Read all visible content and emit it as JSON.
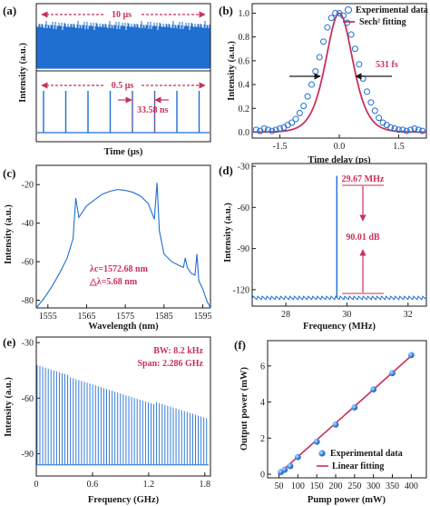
{
  "colors": {
    "blue": "#1f6fd1",
    "red": "#c8325a",
    "ink": "#1a1a1a"
  },
  "chart_data": [
    {
      "panel": "(a)",
      "type": "line",
      "ylabel": "Intensity (a.u.)",
      "xlabel": "Time (μs)",
      "top": {
        "annotation": "10 μs"
      },
      "bottom": {
        "annotation_span": "0.5 μs",
        "annotation_interval": "33.58 ns",
        "pulse_count": 8
      }
    },
    {
      "panel": "(b)",
      "type": "scatter",
      "xlabel": "Time delay (ps)",
      "ylabel": "Intensity (a.u.)",
      "xlim": [
        -2.2,
        2.2
      ],
      "ylim": [
        -0.05,
        1.08
      ],
      "xticks": [
        "-1.5",
        "0.0",
        "1.5"
      ],
      "yticks": [
        "0.0",
        "0.2",
        "0.4",
        "0.6",
        "0.8",
        "1.0"
      ],
      "fwhm_label": "531 fs",
      "legend": [
        "Experimental data",
        "Sech² fitting"
      ],
      "series": [
        {
          "name": "Experimental data",
          "x": [
            -2.1,
            -2.0,
            -1.9,
            -1.8,
            -1.7,
            -1.6,
            -1.5,
            -1.4,
            -1.3,
            -1.2,
            -1.1,
            -1.0,
            -0.9,
            -0.8,
            -0.7,
            -0.6,
            -0.5,
            -0.4,
            -0.3,
            -0.2,
            -0.1,
            0.0,
            0.1,
            0.2,
            0.3,
            0.4,
            0.5,
            0.6,
            0.7,
            0.8,
            0.9,
            1.0,
            1.1,
            1.2,
            1.3,
            1.4,
            1.5,
            1.6,
            1.7,
            1.8,
            1.9,
            2.0,
            2.1
          ],
          "y": [
            0.02,
            0.01,
            0.03,
            0.02,
            0.01,
            0.02,
            0.03,
            0.04,
            0.06,
            0.08,
            0.11,
            0.16,
            0.22,
            0.3,
            0.4,
            0.51,
            0.63,
            0.76,
            0.88,
            0.96,
            1.0,
            1.0,
            0.98,
            0.92,
            0.82,
            0.7,
            0.57,
            0.45,
            0.34,
            0.25,
            0.18,
            0.12,
            0.08,
            0.06,
            0.04,
            0.03,
            0.02,
            0.02,
            0.01,
            0.02,
            0.03,
            0.02,
            0.01
          ]
        },
        {
          "name": "Sech² fitting",
          "center": 0.0,
          "fwhm_ps": 0.81,
          "peak": 1.0
        }
      ]
    },
    {
      "panel": "(c)",
      "type": "line",
      "xlabel": "Wavelength (nm)",
      "ylabel": "Intensity (a.u.)",
      "xlim": [
        1552,
        1597
      ],
      "ylim": [
        -84,
        -10
      ],
      "xticks": [
        1555,
        1565,
        1575,
        1585,
        1595
      ],
      "yticks": [
        -20,
        -40,
        -60,
        -80
      ],
      "center_label": "λc=1572.68 nm",
      "width_label": "△λ=5.68 nm",
      "series": [
        {
          "name": "spectrum",
          "x": [
            1552,
            1554,
            1556,
            1558,
            1560,
            1561.5,
            1562.2,
            1563,
            1565,
            1567,
            1569,
            1571,
            1573,
            1575,
            1577,
            1579,
            1581,
            1582.5,
            1583.2,
            1583.8,
            1585,
            1587,
            1589,
            1590,
            1590.5,
            1591,
            1592,
            1593,
            1593.5,
            1594,
            1595,
            1596,
            1597
          ],
          "y": [
            -84,
            -79,
            -73,
            -66,
            -58,
            -48,
            -27,
            -37,
            -31,
            -28,
            -25,
            -23.5,
            -22.5,
            -23,
            -24,
            -26,
            -30,
            -38,
            -19,
            -44,
            -56,
            -60,
            -62,
            -63,
            -58,
            -63,
            -66,
            -67,
            -56,
            -70,
            -74,
            -80,
            -84
          ]
        }
      ]
    },
    {
      "panel": "(d)",
      "type": "line",
      "xlabel": "Frequency (MHz)",
      "ylabel": "Intensity (a.u.)",
      "xlim": [
        26.9,
        32.6
      ],
      "ylim": [
        -132,
        -28
      ],
      "xticks": [
        28,
        30,
        32
      ],
      "yticks": [
        -30,
        -60,
        -90,
        -120
      ],
      "peak_label": "29.67 MHz",
      "snr_label": "90.01 dB",
      "peak_freq": 29.67,
      "peak_level": -37,
      "noise_floor": -126
    },
    {
      "panel": "(e)",
      "type": "line",
      "xlabel": "Frequency (GHz)",
      "ylabel": "Intensity (a.u.)",
      "xlim": [
        0,
        1.86
      ],
      "ylim": [
        -102,
        -27
      ],
      "xticks": [
        "0",
        "0.6",
        "1.2",
        "1.8"
      ],
      "yticks": [
        -30,
        -60,
        -90
      ],
      "rbw_label": "BW: 8.2 kHz",
      "span_label": "Span: 2.286 GHz",
      "harmonic_spacing_ghz": 0.02967,
      "floor": -96,
      "envelope_start": -42,
      "envelope_end": -72
    },
    {
      "panel": "(f)",
      "type": "scatter",
      "xlabel": "Pump power (mW)",
      "ylabel": "Output power (mW)",
      "xlim": [
        20,
        440
      ],
      "ylim": [
        -0.2,
        7.4
      ],
      "xticks": [
        50,
        100,
        150,
        200,
        250,
        300,
        350,
        400
      ],
      "yticks": [
        0,
        2,
        4,
        6
      ],
      "legend": [
        "Experimental data",
        "Linear fitting"
      ],
      "series": [
        {
          "name": "Experimental data",
          "x": [
            55,
            65,
            80,
            100,
            150,
            200,
            250,
            300,
            350,
            400
          ],
          "y": [
            0.12,
            0.25,
            0.45,
            0.95,
            1.8,
            2.75,
            3.7,
            4.7,
            5.6,
            6.6
          ]
        },
        {
          "name": "Linear fitting",
          "x": [
            48,
            405
          ],
          "y": [
            0.0,
            6.65
          ]
        }
      ]
    }
  ]
}
